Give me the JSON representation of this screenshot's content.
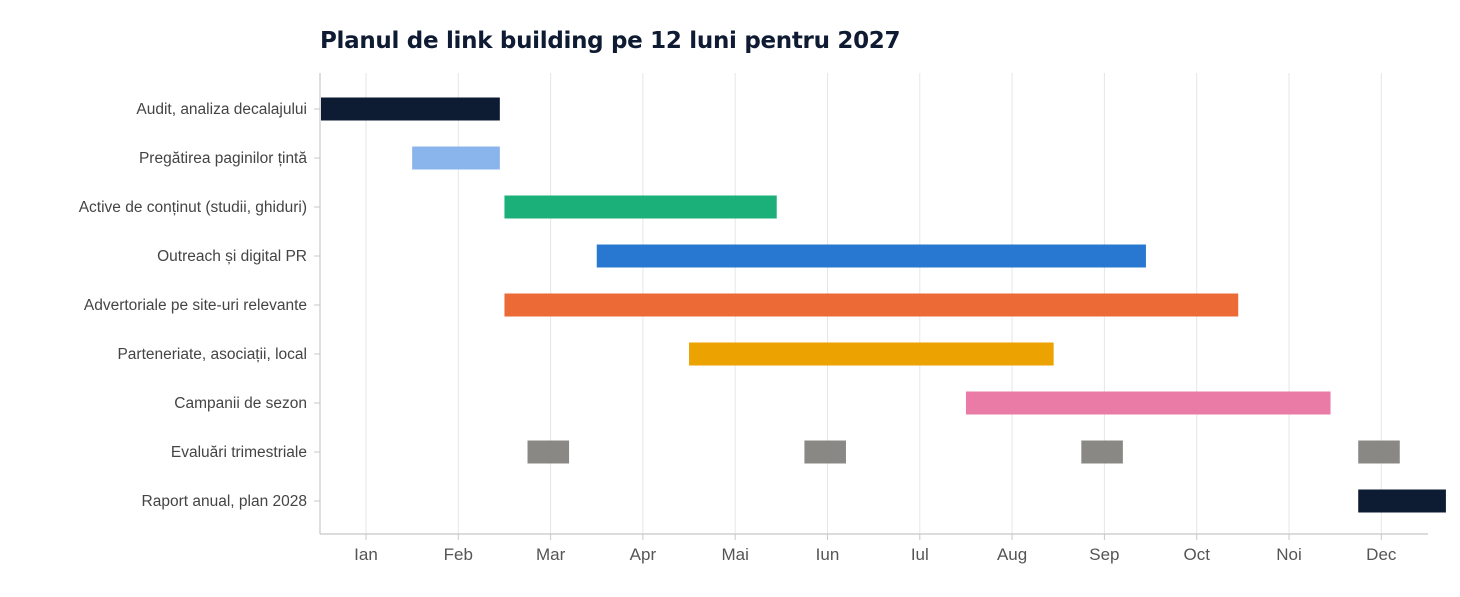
{
  "chart_data": {
    "type": "gantt",
    "title": "Planul de link building pe 12 luni pentru 2027",
    "x_ticks": [
      "Ian",
      "Feb",
      "Mar",
      "Apr",
      "Mai",
      "Iun",
      "Iul",
      "Aug",
      "Sep",
      "Oct",
      "Noi",
      "Dec"
    ],
    "xlim": [
      0.5,
      12.5
    ],
    "grid": true,
    "categories": [
      "Audit, analiza decalajului",
      "Pregătirea paginilor țintă",
      "Active de conținut (studii, ghiduri)",
      "Outreach și digital PR",
      "Advertoriale pe site-uri relevante",
      "Parteneriate, asociații, local",
      "Campanii de sezon",
      "Evaluări trimestriale",
      "Raport anual, plan 2028"
    ],
    "tasks": [
      {
        "task": "Audit, analiza decalajului",
        "color": "#0d1b33",
        "segments": [
          [
            0.5,
            2.45
          ]
        ]
      },
      {
        "task": "Pregătirea paginilor țintă",
        "color": "#8ab4ec",
        "segments": [
          [
            1.5,
            2.45
          ]
        ]
      },
      {
        "task": "Active de conținut (studii, ghiduri)",
        "color": "#1bb07a",
        "segments": [
          [
            2.5,
            5.45
          ]
        ]
      },
      {
        "task": "Outreach și digital PR",
        "color": "#2878d2",
        "segments": [
          [
            3.5,
            9.45
          ]
        ]
      },
      {
        "task": "Advertoriale pe site-uri relevante",
        "color": "#eb6a36",
        "segments": [
          [
            2.5,
            10.45
          ]
        ]
      },
      {
        "task": "Parteneriate, asociații, local",
        "color": "#eca200",
        "segments": [
          [
            4.5,
            8.45
          ]
        ]
      },
      {
        "task": "Campanii de sezon",
        "color": "#e97ba6",
        "segments": [
          [
            7.5,
            11.45
          ]
        ]
      },
      {
        "task": "Evaluări trimestriale",
        "color": "#8a8884",
        "segments": [
          [
            2.75,
            3.2
          ],
          [
            5.75,
            6.2
          ],
          [
            8.75,
            9.2
          ],
          [
            11.75,
            12.2
          ]
        ]
      },
      {
        "task": "Raport anual, plan 2028",
        "color": "#0d1b33",
        "segments": [
          [
            11.75,
            12.7
          ]
        ]
      }
    ]
  }
}
